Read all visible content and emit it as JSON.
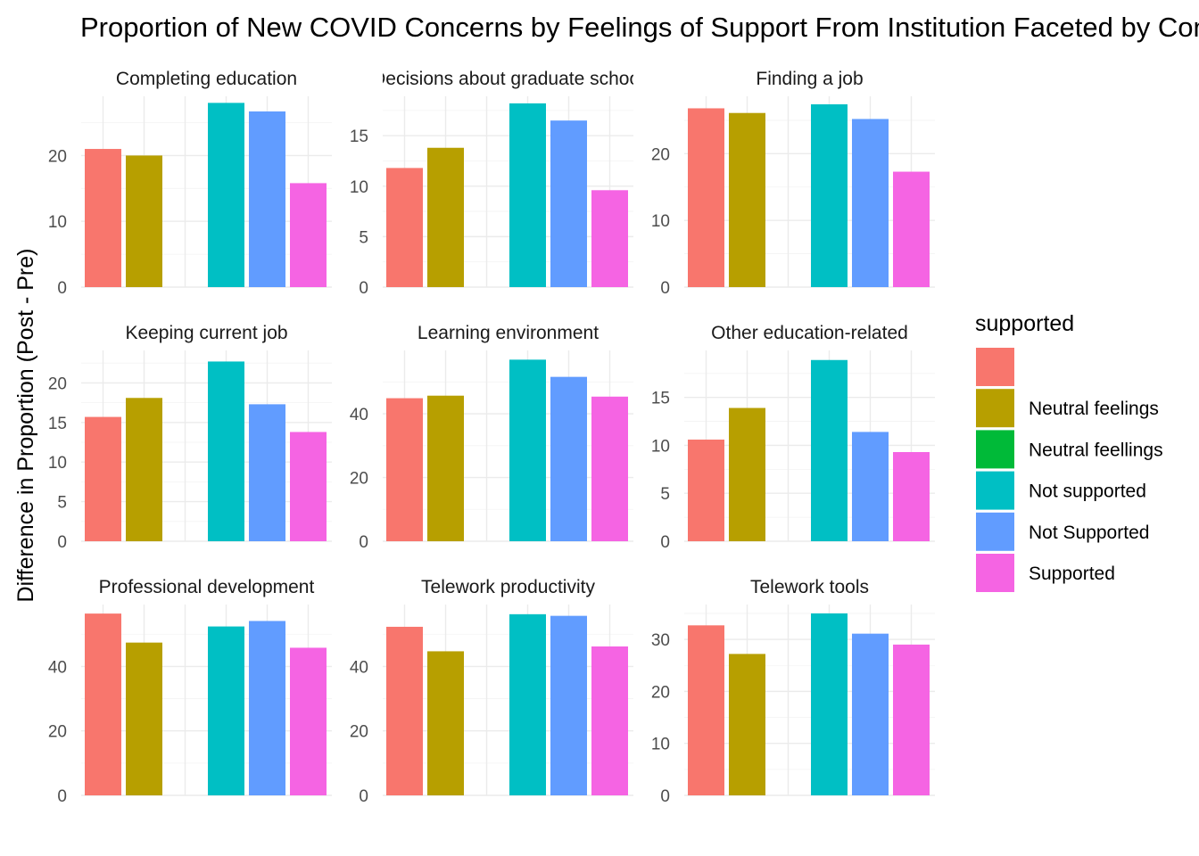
{
  "chart_data": {
    "type": "bar",
    "title": "Proportion of New COVID Concerns by Feelings of Support From  Institution Faceted by Concern",
    "xlabel": "",
    "ylabel": "Difference in Proportion (Post - Pre)",
    "legend": {
      "title": "supported",
      "placement": "right",
      "entries": [
        {
          "label": "",
          "color": "#F8766D"
        },
        {
          "label": "Neutral feelings",
          "color": "#B79F00"
        },
        {
          "label": "Neutral feellings",
          "color": "#00BA38"
        },
        {
          "label": "Not supported",
          "color": "#00BFC4"
        },
        {
          "label": "Not Supported",
          "color": "#619CFF"
        },
        {
          "label": "Supported",
          "color": "#F564E3"
        }
      ]
    },
    "facets": [
      {
        "label": "Completing education",
        "ylim": [
          0,
          29
        ],
        "ticks": [
          0,
          10,
          20
        ],
        "bars": [
          {
            "slot": 0,
            "category": 0,
            "value": 21
          },
          {
            "slot": 1,
            "category": 1,
            "value": 20
          },
          {
            "slot": 3,
            "category": 3,
            "value": 28
          },
          {
            "slot": 4,
            "category": 4,
            "value": 26.7
          },
          {
            "slot": 5,
            "category": 5,
            "value": 15.8
          }
        ]
      },
      {
        "label": "Decisions about graduate school",
        "ylim": [
          0,
          18.9
        ],
        "ticks": [
          0,
          5,
          10,
          15
        ],
        "bars": [
          {
            "slot": 0,
            "category": 0,
            "value": 11.8
          },
          {
            "slot": 1,
            "category": 1,
            "value": 13.8
          },
          {
            "slot": 3,
            "category": 3,
            "value": 18.2
          },
          {
            "slot": 4,
            "category": 4,
            "value": 16.5
          },
          {
            "slot": 5,
            "category": 5,
            "value": 9.6
          }
        ]
      },
      {
        "label": "Finding a job",
        "ylim": [
          0,
          28.6
        ],
        "ticks": [
          0,
          10,
          20
        ],
        "bars": [
          {
            "slot": 0,
            "category": 0,
            "value": 26.8
          },
          {
            "slot": 1,
            "category": 1,
            "value": 26.1
          },
          {
            "slot": 3,
            "category": 3,
            "value": 27.4
          },
          {
            "slot": 4,
            "category": 4,
            "value": 25.2
          },
          {
            "slot": 5,
            "category": 5,
            "value": 17.3
          }
        ]
      },
      {
        "label": "Keeping current job",
        "ylim": [
          0,
          24.1
        ],
        "ticks": [
          0,
          5,
          10,
          15,
          20
        ],
        "bars": [
          {
            "slot": 0,
            "category": 0,
            "value": 15.7
          },
          {
            "slot": 1,
            "category": 1,
            "value": 18.1
          },
          {
            "slot": 3,
            "category": 3,
            "value": 22.7
          },
          {
            "slot": 4,
            "category": 4,
            "value": 17.3
          },
          {
            "slot": 5,
            "category": 5,
            "value": 13.8
          }
        ]
      },
      {
        "label": "Learning environment",
        "ylim": [
          0,
          59.9
        ],
        "ticks": [
          0,
          20,
          40
        ],
        "bars": [
          {
            "slot": 0,
            "category": 0,
            "value": 44.9
          },
          {
            "slot": 1,
            "category": 1,
            "value": 45.7
          },
          {
            "slot": 3,
            "category": 3,
            "value": 57
          },
          {
            "slot": 4,
            "category": 4,
            "value": 51.6
          },
          {
            "slot": 5,
            "category": 5,
            "value": 45.4
          }
        ]
      },
      {
        "label": "Other education-related",
        "ylim": [
          0,
          19.9
        ],
        "ticks": [
          0,
          5,
          10,
          15
        ],
        "bars": [
          {
            "slot": 0,
            "category": 0,
            "value": 10.6
          },
          {
            "slot": 1,
            "category": 1,
            "value": 13.9
          },
          {
            "slot": 3,
            "category": 3,
            "value": 18.9
          },
          {
            "slot": 4,
            "category": 4,
            "value": 11.4
          },
          {
            "slot": 5,
            "category": 5,
            "value": 9.3
          }
        ]
      },
      {
        "label": "Professional development",
        "ylim": [
          0,
          59.2
        ],
        "ticks": [
          0,
          20,
          40
        ],
        "bars": [
          {
            "slot": 0,
            "category": 0,
            "value": 56.4
          },
          {
            "slot": 1,
            "category": 1,
            "value": 47.4
          },
          {
            "slot": 3,
            "category": 3,
            "value": 52.4
          },
          {
            "slot": 4,
            "category": 4,
            "value": 54.1
          },
          {
            "slot": 5,
            "category": 5,
            "value": 45.8
          }
        ]
      },
      {
        "label": "Telework productivity",
        "ylim": [
          0,
          59.2
        ],
        "ticks": [
          0,
          20,
          40
        ],
        "bars": [
          {
            "slot": 0,
            "category": 0,
            "value": 52.3
          },
          {
            "slot": 1,
            "category": 1,
            "value": 44.7
          },
          {
            "slot": 3,
            "category": 3,
            "value": 56.2
          },
          {
            "slot": 4,
            "category": 4,
            "value": 55.7
          },
          {
            "slot": 5,
            "category": 5,
            "value": 46.2
          }
        ]
      },
      {
        "label": "Telework tools",
        "ylim": [
          0,
          36.7
        ],
        "ticks": [
          0,
          10,
          20,
          30
        ],
        "bars": [
          {
            "slot": 0,
            "category": 0,
            "value": 32.7
          },
          {
            "slot": 1,
            "category": 1,
            "value": 27.2
          },
          {
            "slot": 3,
            "category": 3,
            "value": 35
          },
          {
            "slot": 4,
            "category": 4,
            "value": 31.1
          },
          {
            "slot": 5,
            "category": 5,
            "value": 29
          }
        ]
      }
    ]
  }
}
